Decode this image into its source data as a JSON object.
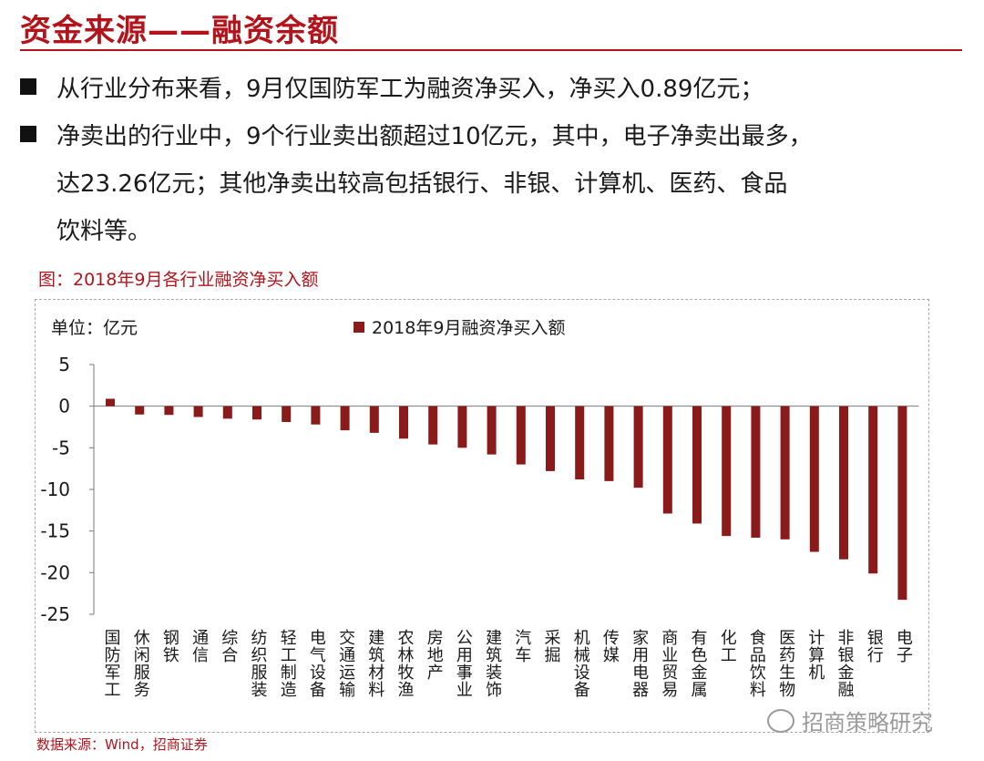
{
  "header": {
    "title": "资金来源——融资余额"
  },
  "bullets": [
    "从行业分布来看，9月仅国防军工为融资净买入，净买入0.89亿元；",
    "净卖出的行业中，9个行业卖出额超过10亿元，其中，电子净卖出最多，",
    "达23.26亿元；其他净卖出较高包括银行、非银、计算机、医药、食品",
    "饮料等。"
  ],
  "chart_caption": "图：2018年9月各行业融资净买入额",
  "source": "数据来源：Wind，招商证券",
  "watermark": "招商策略研究",
  "colors": {
    "accent": "#b3141c",
    "bar": "#8b1a1a"
  },
  "chart_data": {
    "type": "bar",
    "unit_label": "单位：亿元",
    "categories": [
      "国防军工",
      "休闲服务",
      "钢铁",
      "通信",
      "综合",
      "纺织服装",
      "轻工制造",
      "电气设备",
      "交通运输",
      "建筑材料",
      "农林牧渔",
      "房地产",
      "公用事业",
      "建筑装饰",
      "汽车",
      "采掘",
      "机械设备",
      "传媒",
      "家用电器",
      "商业贸易",
      "有色金属",
      "化工",
      "食品饮料",
      "医药生物",
      "计算机",
      "非银金融",
      "银行",
      "电子"
    ],
    "series": [
      {
        "name": "2018年9月融资净买入额",
        "values": [
          0.89,
          -1.0,
          -1.05,
          -1.3,
          -1.5,
          -1.6,
          -1.9,
          -2.2,
          -2.9,
          -3.2,
          -3.9,
          -4.6,
          -5.0,
          -5.8,
          -7.0,
          -7.8,
          -8.8,
          -9.0,
          -9.8,
          -12.9,
          -14.1,
          -15.6,
          -15.8,
          -16.0,
          -17.5,
          -18.4,
          -20.1,
          -23.26
        ]
      }
    ],
    "yticks": [
      5,
      0,
      -5,
      -10,
      -15,
      -20,
      -25
    ],
    "ylim": [
      -25,
      5
    ],
    "grid": false,
    "legend_position": "top"
  }
}
